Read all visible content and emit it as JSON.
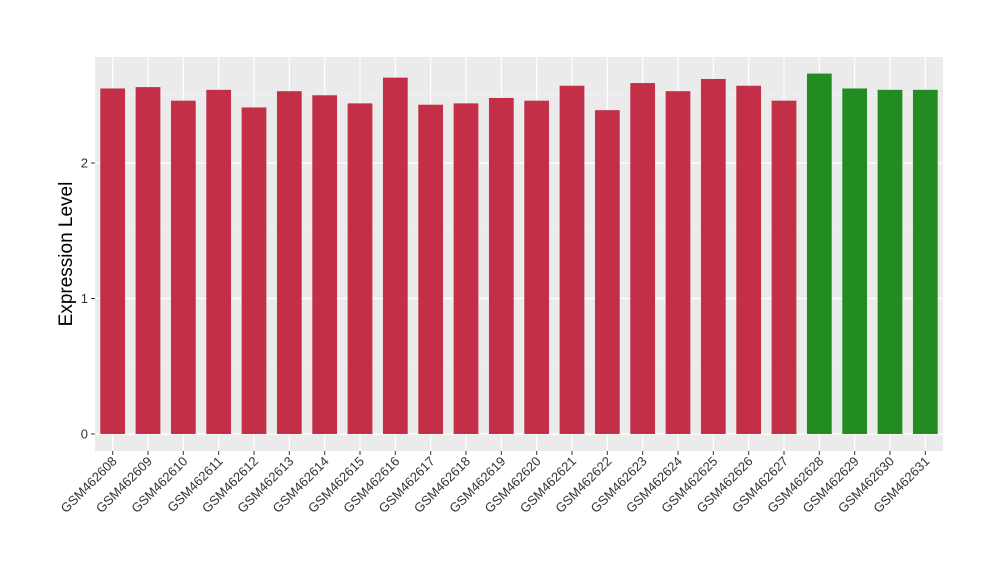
{
  "chart_data": {
    "type": "bar",
    "ylabel": "Expression Level",
    "xlabel": "",
    "ylim": [
      -0.1,
      2.8
    ],
    "yticks": [
      0,
      1,
      2
    ],
    "grid": true,
    "background": "#ebebeb",
    "colors": {
      "group1": "#c32f47",
      "group2": "#228b22"
    },
    "categories": [
      "GSM462608",
      "GSM462609",
      "GSM462610",
      "GSM462611",
      "GSM462612",
      "GSM462613",
      "GSM462614",
      "GSM462615",
      "GSM462616",
      "GSM462617",
      "GSM462618",
      "GSM462619",
      "GSM462620",
      "GSM462621",
      "GSM462622",
      "GSM462623",
      "GSM462624",
      "GSM462625",
      "GSM462626",
      "GSM462627",
      "GSM462628",
      "GSM462629",
      "GSM462630",
      "GSM462631"
    ],
    "values": [
      2.55,
      2.56,
      2.46,
      2.54,
      2.41,
      2.53,
      2.5,
      2.44,
      2.63,
      2.43,
      2.44,
      2.48,
      2.46,
      2.57,
      2.39,
      2.59,
      2.53,
      2.62,
      2.57,
      2.46,
      2.66,
      2.55,
      2.54,
      2.54
    ],
    "groups": [
      "group1",
      "group1",
      "group1",
      "group1",
      "group1",
      "group1",
      "group1",
      "group1",
      "group1",
      "group1",
      "group1",
      "group1",
      "group1",
      "group1",
      "group1",
      "group1",
      "group1",
      "group1",
      "group1",
      "group1",
      "group2",
      "group2",
      "group2",
      "group2"
    ]
  }
}
